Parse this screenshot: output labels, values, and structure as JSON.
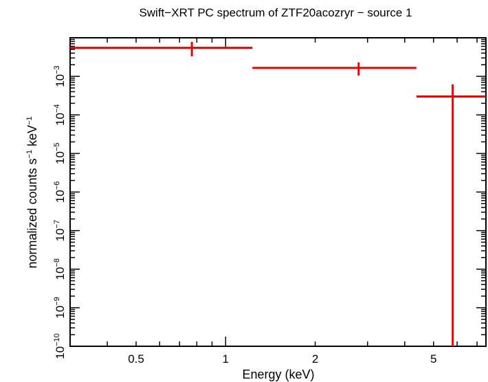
{
  "chart_data": {
    "type": "scatter",
    "title": "Swift−XRT PC spectrum of ZTF20acozryr − source 1",
    "xlabel": "Energy (keV)",
    "ylabel": {
      "base": "normalized counts s",
      "sup1": "−1",
      "mid": " keV",
      "sup2": "−1"
    },
    "x_scale": "log",
    "y_scale": "log",
    "xlim": [
      0.3,
      7.5
    ],
    "ylim": [
      1e-10,
      0.01
    ],
    "x_tick_labels": [
      {
        "value": 0.5,
        "label": "0.5"
      },
      {
        "value": 1,
        "label": "1"
      },
      {
        "value": 2,
        "label": "2"
      },
      {
        "value": 5,
        "label": "5"
      }
    ],
    "y_tick_labels": [
      {
        "value": 1e-10,
        "base": "10",
        "exp": "−10"
      },
      {
        "value": 1e-09,
        "base": "10",
        "exp": "−9"
      },
      {
        "value": 1e-08,
        "base": "10",
        "exp": "−8"
      },
      {
        "value": 1e-07,
        "base": "10",
        "exp": "−7"
      },
      {
        "value": 1e-06,
        "base": "10",
        "exp": "−6"
      },
      {
        "value": 1e-05,
        "base": "10",
        "exp": "−5"
      },
      {
        "value": 0.0001,
        "base": "10",
        "exp": "−4"
      },
      {
        "value": 0.001,
        "base": "10",
        "exp": "−3"
      }
    ],
    "series": [
      {
        "color": "#ee0000",
        "points": [
          {
            "x": 0.77,
            "xlo": 0.3,
            "xhi": 1.23,
            "y": 0.0055,
            "ylo": 0.0033,
            "yhi": 0.0078
          },
          {
            "x": 2.8,
            "xlo": 1.23,
            "xhi": 4.38,
            "y": 0.00165,
            "ylo": 0.00105,
            "yhi": 0.0023
          },
          {
            "x": 5.8,
            "xlo": 4.38,
            "xhi": 7.5,
            "y": 0.0003,
            "ylo": 1e-10,
            "yhi": 0.00062
          }
        ]
      }
    ]
  }
}
